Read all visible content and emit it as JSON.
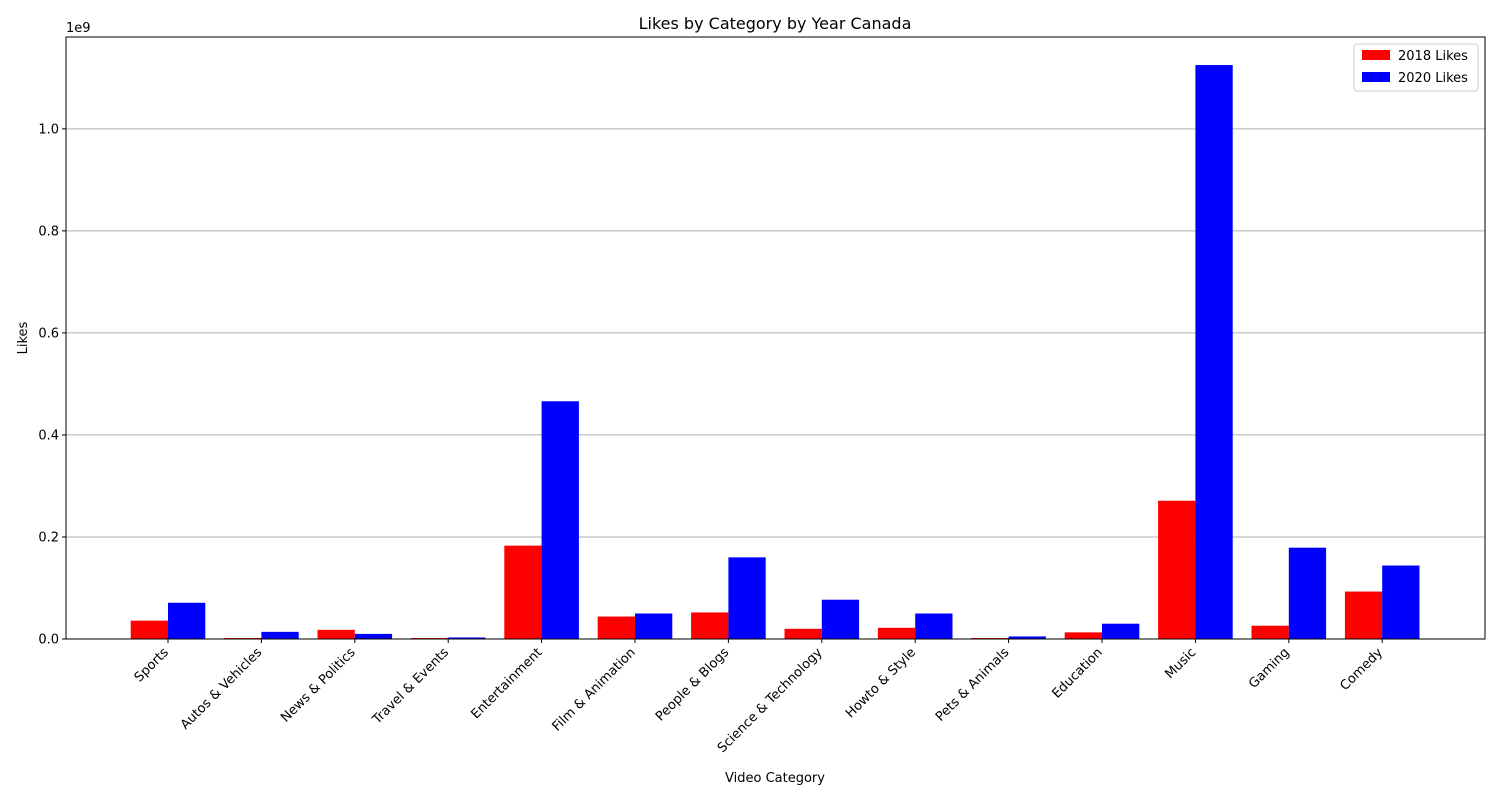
{
  "chart_data": {
    "type": "bar",
    "title": "Likes by Category by Year Canada",
    "xlabel": "Video Category",
    "ylabel": "Likes",
    "y_offset_label": "1e9",
    "ylim": [
      0,
      1180000000
    ],
    "yticks": [
      0,
      200000000,
      400000000,
      600000000,
      800000000,
      1000000000
    ],
    "ytick_labels": [
      "0.0",
      "0.2",
      "0.4",
      "0.6",
      "0.8",
      "1.0"
    ],
    "grid": "horizontal",
    "legend_position": "top-right",
    "categories": [
      "Sports",
      "Autos & Vehicles",
      "News & Politics",
      "Travel & Events",
      "Entertainment",
      "Film & Animation",
      "People & Blogs",
      "Science & Technology",
      "Howto & Style",
      "Pets & Animals",
      "Education",
      "Music",
      "Gaming",
      "Comedy"
    ],
    "series": [
      {
        "name": "2018 Likes",
        "color": "#ff0000",
        "values": [
          36000000,
          2000000,
          18000000,
          2000000,
          183000000,
          44000000,
          52000000,
          20000000,
          22000000,
          2000000,
          13000000,
          271000000,
          26000000,
          93000000
        ]
      },
      {
        "name": "2020 Likes",
        "color": "#0000ff",
        "values": [
          71000000,
          14000000,
          10000000,
          3000000,
          466000000,
          50000000,
          160000000,
          77000000,
          50000000,
          5000000,
          30000000,
          1125000000,
          179000000,
          144000000
        ]
      }
    ]
  }
}
